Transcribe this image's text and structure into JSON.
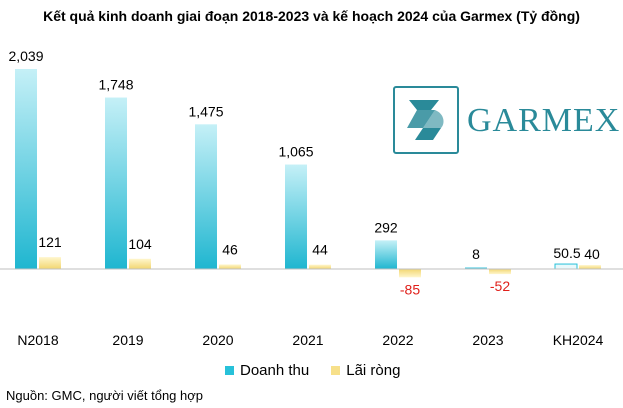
{
  "title": "Kết quả kinh doanh giai đoạn 2018-2023 và kế hoạch 2024 của Garmex (Tỷ đồng)",
  "logo": {
    "text": "GARMEX"
  },
  "source": "Nguồn: GMC, người viết tổng hợp",
  "colors": {
    "revenue": "#27c1d9",
    "profit": "#f7e08a",
    "negative_label": "#e0201b"
  },
  "chart_data": {
    "type": "bar",
    "categories": [
      "N2018",
      "2019",
      "2020",
      "2021",
      "2022",
      "2023",
      "KH2024"
    ],
    "series": [
      {
        "name": "Doanh thu",
        "values": [
          2039,
          1748,
          1475,
          1065,
          292,
          8,
          50.5
        ],
        "labels": [
          "2,039",
          "1,748",
          "1,475",
          "1,065",
          "292",
          "8",
          "50.5"
        ]
      },
      {
        "name": "Lãi ròng",
        "values": [
          121,
          104,
          46,
          44,
          -85,
          -52,
          40
        ],
        "labels": [
          "121",
          "104",
          "46",
          "44",
          "-85",
          "-52",
          "40"
        ]
      }
    ],
    "ylim": [
      -200,
      2100
    ],
    "grid": false,
    "legend": "bottom"
  }
}
